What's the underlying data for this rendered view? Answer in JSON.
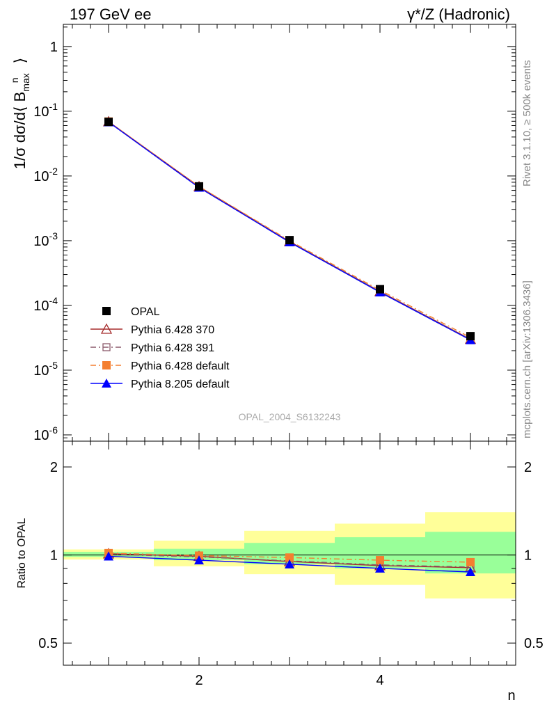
{
  "header": {
    "left_title": "197 GeV ee",
    "right_title": "γ*/Z (Hadronic)"
  },
  "side_labels": {
    "rivet": "Rivet 3.1.10, ≥ 500k events",
    "mcplots": "mcplots.cern.ch [arXiv:1306.3436]"
  },
  "watermark": "OPAL_2004_S6132243",
  "chart_data": [
    {
      "id": "main",
      "type": "line",
      "yscale": "log",
      "ylabel": "1/σ dσ/d⟨ B_max^n ⟩",
      "xlabel": "",
      "xlim": [
        0.5,
        5.5
      ],
      "ylim": [
        8e-07,
        2.2
      ],
      "yticks": [
        {
          "value": 1,
          "label": "1"
        },
        {
          "value": 0.1,
          "label": "10^-1"
        },
        {
          "value": 0.01,
          "label": "10^-2"
        },
        {
          "value": 0.001,
          "label": "10^-3"
        },
        {
          "value": 0.0001,
          "label": "10^-4"
        },
        {
          "value": 1e-05,
          "label": "10^-5"
        },
        {
          "value": 1e-06,
          "label": "10^-6"
        }
      ],
      "x": [
        1,
        2,
        3,
        4,
        5
      ],
      "series": [
        {
          "name": "OPAL",
          "style": "data",
          "color": "#000000",
          "marker": "square-filled",
          "values": [
            0.0685,
            0.0069,
            0.00102,
            0.000178,
            3.35e-05
          ]
        },
        {
          "name": "Pythia 6.428 370",
          "style": "solid",
          "color": "#a52a2a",
          "marker": "triangle-open",
          "values": [
            0.069,
            0.00685,
            0.00097,
            0.000164,
            3e-05
          ]
        },
        {
          "name": "Pythia 6.428 391",
          "style": "dashdot",
          "color": "#8b5a6b",
          "marker": "square-open",
          "values": [
            0.069,
            0.00685,
            0.00097,
            0.000164,
            3e-05
          ]
        },
        {
          "name": "Pythia 6.428 default",
          "style": "dashdot",
          "color": "#f47f30",
          "marker": "square-filled",
          "values": [
            0.0693,
            0.0069,
            0.001,
            0.000172,
            3.2e-05
          ]
        },
        {
          "name": "Pythia 8.205 default",
          "style": "solid",
          "color": "#0000ff",
          "marker": "triangle-filled",
          "values": [
            0.068,
            0.00662,
            0.00095,
            0.00016,
            2.92e-05
          ]
        }
      ]
    },
    {
      "id": "ratio",
      "type": "line",
      "yscale": "log",
      "ylabel": "Ratio to OPAL",
      "xlabel": "n",
      "xlim": [
        0.5,
        5.5
      ],
      "ylim": [
        0.42,
        2.45
      ],
      "yticks": [
        {
          "value": 0.5,
          "label": "0.5"
        },
        {
          "value": 1,
          "label": "1"
        },
        {
          "value": 2,
          "label": "2"
        }
      ],
      "xticks": [
        {
          "value": 2,
          "label": "2"
        },
        {
          "value": 4,
          "label": "4"
        }
      ],
      "bands": {
        "bins": [
          [
            0.5,
            1.5
          ],
          [
            1.5,
            2.5
          ],
          [
            2.5,
            3.5
          ],
          [
            3.5,
            4.5
          ],
          [
            4.5,
            5.5
          ]
        ],
        "inner": {
          "color": "#99ff99",
          "low": [
            0.985,
            0.96,
            0.93,
            0.9,
            0.865
          ],
          "high": [
            1.025,
            1.05,
            1.1,
            1.15,
            1.2
          ]
        },
        "outer": {
          "color": "#ffff99",
          "low": [
            0.965,
            0.915,
            0.86,
            0.79,
            0.71
          ],
          "high": [
            1.045,
            1.12,
            1.21,
            1.28,
            1.4
          ]
        }
      },
      "x": [
        1,
        2,
        3,
        4,
        5
      ],
      "series": [
        {
          "name": "Pythia 6.428 370",
          "values": [
            1.01,
            0.99,
            0.95,
            0.92,
            0.905
          ]
        },
        {
          "name": "Pythia 6.428 391",
          "values": [
            1.005,
            0.985,
            0.955,
            0.925,
            0.91
          ]
        },
        {
          "name": "Pythia 6.428 default",
          "values": [
            1.015,
            0.995,
            0.98,
            0.96,
            0.945
          ]
        },
        {
          "name": "Pythia 8.205 default",
          "values": [
            0.99,
            0.96,
            0.93,
            0.9,
            0.875
          ]
        }
      ]
    }
  ]
}
